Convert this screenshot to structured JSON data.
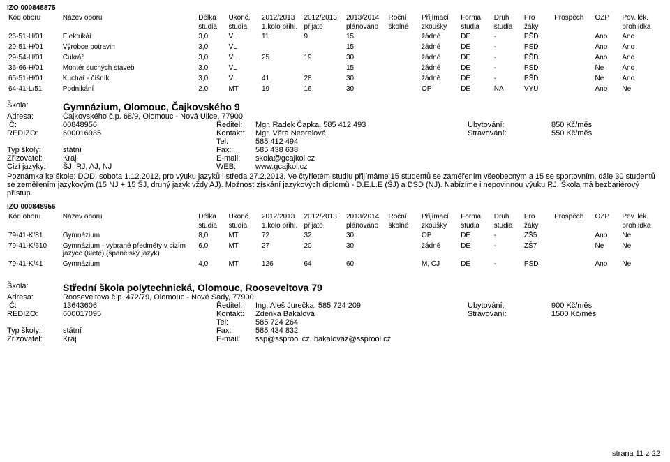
{
  "izo_top": "IZO 000848875",
  "headers": {
    "kod": "Kód oboru",
    "nazev": "Název oboru",
    "delka": "Délka",
    "delka2": "studia",
    "ukonc": "Ukonč.",
    "ukonc2": "studia",
    "c1": "2012/2013",
    "c1b": "1.kolo přihl.",
    "c2": "2012/2013",
    "c2b": "přijato",
    "c3": "2013/2014",
    "c3b": "plánováno",
    "c4": "Roční",
    "c4b": "školné",
    "c5": "Přijímací",
    "c5b": "zkoušky",
    "c6": "Forma",
    "c6b": "studia",
    "c7": "Druh",
    "c7b": "studia",
    "c8": "Pro",
    "c8b": "žáky",
    "c9": "Prospěch",
    "c10": "OZP",
    "c11": "Pov. lék.",
    "c11b": "prohlídka"
  },
  "rows1": [
    {
      "kod": "26-51-H/01",
      "nazev": "Elektrikář",
      "delka": "3,0",
      "ukonc": "VL",
      "a": "11",
      "b": "9",
      "c": "15",
      "d": "",
      "e": "žádné",
      "f": "DE",
      "g": "-",
      "h": "PŠD",
      "i": "",
      "j": "Ano",
      "k": "Ano"
    },
    {
      "kod": "29-51-H/01",
      "nazev": "Výrobce potravin",
      "delka": "3,0",
      "ukonc": "VL",
      "a": "",
      "b": "",
      "c": "15",
      "d": "",
      "e": "žádné",
      "f": "DE",
      "g": "-",
      "h": "PŠD",
      "i": "",
      "j": "Ano",
      "k": "Ano"
    },
    {
      "kod": "29-54-H/01",
      "nazev": "Cukrář",
      "delka": "3,0",
      "ukonc": "VL",
      "a": "25",
      "b": "19",
      "c": "30",
      "d": "",
      "e": "žádné",
      "f": "DE",
      "g": "-",
      "h": "PŠD",
      "i": "",
      "j": "Ano",
      "k": "Ano"
    },
    {
      "kod": "36-66-H/01",
      "nazev": "Montér suchých staveb",
      "delka": "3,0",
      "ukonc": "VL",
      "a": "",
      "b": "",
      "c": "15",
      "d": "",
      "e": "žádné",
      "f": "DE",
      "g": "-",
      "h": "PŠD",
      "i": "",
      "j": "Ne",
      "k": "Ano"
    },
    {
      "kod": "65-51-H/01",
      "nazev": "Kuchař - číšník",
      "delka": "3,0",
      "ukonc": "VL",
      "a": "41",
      "b": "28",
      "c": "30",
      "d": "",
      "e": "žádné",
      "f": "DE",
      "g": "-",
      "h": "PŠD",
      "i": "",
      "j": "Ne",
      "k": "Ano"
    },
    {
      "kod": "64-41-L/51",
      "nazev": "Podnikání",
      "delka": "2,0",
      "ukonc": "MT",
      "a": "19",
      "b": "16",
      "c": "30",
      "d": "",
      "e": "OP",
      "f": "DE",
      "g": "NA",
      "h": "VYU",
      "i": "",
      "j": "Ano",
      "k": "Ne"
    }
  ],
  "school1": {
    "label": "Škola:",
    "title": "Gymnázium, Olomouc, Čajkovského 9",
    "adresa_l": "Adresa:",
    "adresa": "Čajkovského č.p. 68/9, Olomouc - Nová Ulice, 77900",
    "ic_l": "IČ:",
    "ic": "00848956",
    "reditel_l": "Ředitel:",
    "reditel": "Mgr. Radek Čapka, 585 412 493",
    "ubyt_l": "Ubytování:",
    "ubyt": "850 Kč/měs",
    "redizo_l": "REDIZO:",
    "redizo": "600016935",
    "kontakt_l": "Kontakt:",
    "kontakt": "Mgr. Věra Neoralová",
    "strav_l": "Stravování:",
    "strav": "550 Kč/měs",
    "tel_l": "Tel:",
    "tel": "585 412 494",
    "typ_l": "Typ školy:",
    "typ": "státní",
    "fax_l": "Fax:",
    "fax": "585 438 638",
    "zriz_l": "Zřizovatel:",
    "zriz": "Kraj",
    "email_l": "E-mail:",
    "email": "skola@gcajkol.cz",
    "jaz_l": "Cizí jazyky:",
    "jaz": "ŠJ, RJ, AJ, NJ",
    "web_l": "WEB:",
    "web": "www.gcajkol.cz",
    "note": "Poznámka ke škole: DOD: sobota 1.12.2012, pro výuku jazyků i středa 27.2.2013. Ve čtyřletém studiu přijímáme 15 studentů se zaměřením všeobecným a 15 se sportovním, dále 30 studentů se zeměřením jazykovým (15 NJ + 15 ŠJ, druhý jazyk vždy AJ). Možnost získání jazykových diplomů - D.E.L.E (ŠJ) a DSD (NJ). Nabízíme i nepovinnou výuku RJ. Škola má bezbariérový přístup."
  },
  "izo_mid": "IZO 000848956",
  "rows2": [
    {
      "kod": "79-41-K/81",
      "nazev": "Gymnázium",
      "delka": "8,0",
      "ukonc": "MT",
      "a": "72",
      "b": "32",
      "c": "30",
      "d": "",
      "e": "OP",
      "f": "DE",
      "g": "-",
      "h": "ZŠ5",
      "i": "",
      "j": "Ano",
      "k": "Ne"
    },
    {
      "kod": "79-41-K/610",
      "nazev": "Gymnázium - vybrané předměty v cizím jazyce (6leté) (španělský jazyk)",
      "delka": "6,0",
      "ukonc": "MT",
      "a": "27",
      "b": "20",
      "c": "30",
      "d": "",
      "e": "žádné",
      "f": "DE",
      "g": "-",
      "h": "ZŠ7",
      "i": "",
      "j": "Ne",
      "k": "Ne"
    },
    {
      "kod": "79-41-K/41",
      "nazev": "Gymnázium",
      "delka": "4,0",
      "ukonc": "MT",
      "a": "126",
      "b": "64",
      "c": "60",
      "d": "",
      "e": "M, ČJ",
      "f": "DE",
      "g": "-",
      "h": "PŠD",
      "i": "",
      "j": "Ano",
      "k": "Ne"
    }
  ],
  "school2": {
    "label": "Škola:",
    "title": "Střední škola polytechnická, Olomouc, Rooseveltova 79",
    "adresa_l": "Adresa:",
    "adresa": "Rooseveltova č.p. 472/79, Olomouc - Nové Sady, 77900",
    "ic_l": "IČ:",
    "ic": "13643606",
    "reditel_l": "Ředitel:",
    "reditel": "Ing. Aleš Jurečka, 585 724 209",
    "ubyt_l": "Ubytování:",
    "ubyt": "900 Kč/měs",
    "redizo_l": "REDIZO:",
    "redizo": "600017095",
    "kontakt_l": "Kontakt:",
    "kontakt": "Zdeňka Bakalová",
    "strav_l": "Stravování:",
    "strav": "1500 Kč/měs",
    "tel_l": "Tel:",
    "tel": "585 724 264",
    "typ_l": "Typ školy:",
    "typ": "státní",
    "fax_l": "Fax:",
    "fax": "585 434 832",
    "zriz_l": "Zřizovatel:",
    "zriz": "Kraj",
    "email_l": "E-mail:",
    "email": "ssp@ssprool.cz, bakalovaz@ssprool.cz"
  },
  "footer": "strana 11 z 22"
}
